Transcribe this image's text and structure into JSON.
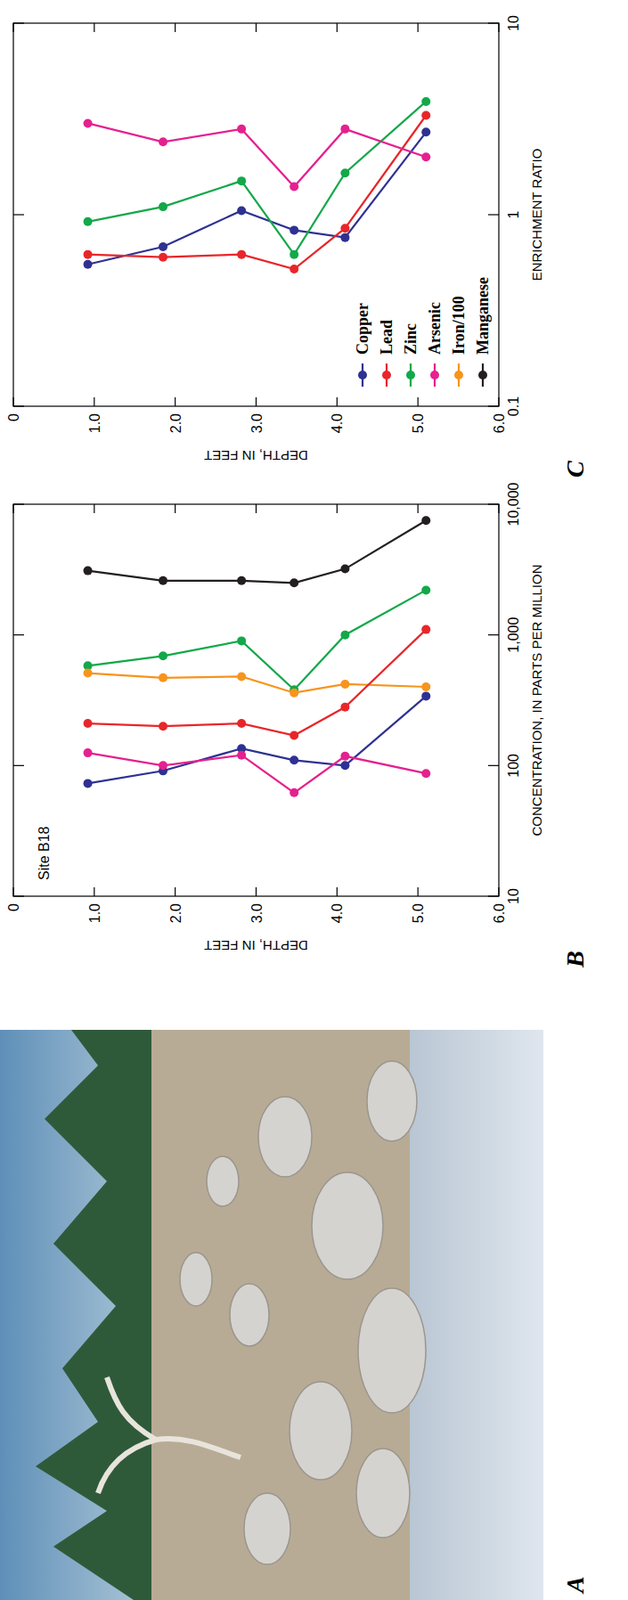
{
  "photo": {
    "panel": "A"
  },
  "chart_data": [
    {
      "type": "line",
      "panel": "B",
      "annotation": "Site B18",
      "x_label": "CONCENTRATION, IN PARTS PER MILLION",
      "y_label": "DEPTH, IN FEET",
      "orientation": "horizontal",
      "log": "x",
      "marker": "circle",
      "xlim": [
        10,
        10000
      ],
      "xticks": [
        10,
        100,
        {
          "value": 1000,
          "label": "1,000"
        },
        {
          "value": 10000,
          "label": "10,000"
        }
      ],
      "ylim": [
        0,
        6
      ],
      "yticks": [
        0,
        {
          "value": 1,
          "label": "1.0"
        },
        {
          "value": 2,
          "label": "2.0"
        },
        {
          "value": 3,
          "label": "3.0"
        },
        {
          "value": 4,
          "label": "4.0"
        },
        {
          "value": 5,
          "label": "5.0"
        },
        {
          "value": 6,
          "label": "6.0"
        }
      ],
      "y": [
        0.92,
        1.85,
        2.82,
        3.47,
        4.1,
        5.1
      ],
      "series": [
        {
          "name": "Manganese",
          "color": "#231f20",
          "values": [
            3100,
            2600,
            2600,
            2500,
            3200,
            7500
          ]
        },
        {
          "name": "Zinc",
          "color": "#13a84a",
          "values": [
            580,
            690,
            900,
            380,
            1000,
            2200
          ]
        },
        {
          "name": "Iron/100",
          "color": "#f7941d",
          "values": [
            510,
            470,
            480,
            360,
            420,
            400
          ]
        },
        {
          "name": "Lead",
          "color": "#e8262a",
          "values": [
            210,
            200,
            210,
            170,
            280,
            1100
          ]
        },
        {
          "name": "Copper",
          "color": "#2e3192",
          "values": [
            73,
            91,
            135,
            110,
            100,
            340
          ]
        },
        {
          "name": "Arsenic",
          "color": "#e5208f",
          "values": [
            125,
            100,
            120,
            62,
            118,
            87
          ]
        }
      ]
    },
    {
      "type": "line",
      "panel": "C",
      "x_label": "ENRICHMENT RATIO",
      "y_label": "DEPTH, IN FEET",
      "orientation": "horizontal",
      "log": "x",
      "marker": "circle",
      "legend": "bottom-left",
      "xlim": [
        0.1,
        10
      ],
      "xticks": [
        0.1,
        1,
        10
      ],
      "ylim": [
        0,
        6
      ],
      "yticks": [
        0,
        {
          "value": 1,
          "label": "1.0"
        },
        {
          "value": 2,
          "label": "2.0"
        },
        {
          "value": 3,
          "label": "3.0"
        },
        {
          "value": 4,
          "label": "4.0"
        },
        {
          "value": 5,
          "label": "5.0"
        },
        {
          "value": 6,
          "label": "6.0"
        }
      ],
      "y": [
        0.92,
        1.85,
        2.82,
        3.47,
        4.1,
        5.1
      ],
      "series": [
        {
          "name": "Copper",
          "color": "#2e3192",
          "values": [
            0.55,
            0.68,
            1.05,
            0.83,
            0.76,
            2.7
          ]
        },
        {
          "name": "Lead",
          "color": "#e8262a",
          "values": [
            0.62,
            0.6,
            0.62,
            0.52,
            0.85,
            3.3
          ]
        },
        {
          "name": "Zinc",
          "color": "#13a84a",
          "values": [
            0.92,
            1.1,
            1.5,
            0.62,
            1.65,
            3.9
          ]
        },
        {
          "name": "Arsenic",
          "color": "#e5208f",
          "values": [
            3.0,
            2.4,
            2.8,
            1.4,
            2.8,
            2.0
          ]
        },
        {
          "name": "Iron/100",
          "color": "#f7941d",
          "values": [
            null,
            null,
            null,
            null,
            null,
            null
          ]
        },
        {
          "name": "Manganese",
          "color": "#231f20",
          "values": [
            null,
            null,
            null,
            null,
            null,
            null
          ]
        }
      ]
    }
  ]
}
